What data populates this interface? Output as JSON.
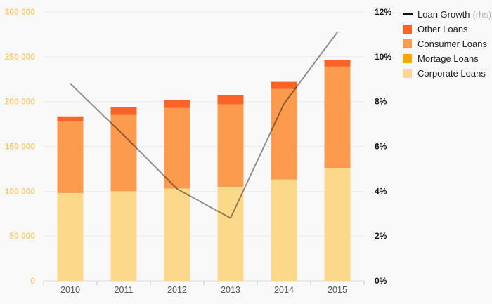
{
  "chart_data": {
    "type": "bar",
    "subtype": "stacked-bars-with-line-overlay",
    "title": "",
    "categories": [
      "2010",
      "2011",
      "2012",
      "2013",
      "2014",
      "2015"
    ],
    "series": [
      {
        "name": "Corporate Loans",
        "type": "bar",
        "color": "#fbd88a",
        "values": [
          98000,
          100000,
          103000,
          105000,
          113000,
          126000
        ]
      },
      {
        "name": "Mortage Loans",
        "type": "bar",
        "color": "#f6a800",
        "values": [
          0,
          0,
          0,
          0,
          0,
          0
        ]
      },
      {
        "name": "Consumer Loans",
        "type": "bar",
        "color": "#fc9a4e",
        "values": [
          80000,
          85000,
          90000,
          92000,
          101000,
          113000
        ]
      },
      {
        "name": "Other Loans",
        "type": "bar",
        "color": "#fb6426",
        "values": [
          5500,
          8500,
          8500,
          10000,
          8000,
          7500
        ]
      },
      {
        "name": "Loan Growth",
        "type": "line",
        "axis": "right",
        "color": "rgba(0,0,0,0.42)",
        "values": [
          8.8,
          6.5,
          4.1,
          2.8,
          7.9,
          11.1
        ]
      }
    ],
    "left_axis": {
      "min": 0,
      "max": 300000,
      "tick_values": [
        0,
        50000,
        100000,
        150000,
        200000,
        250000,
        300000
      ],
      "tick_labels": [
        "0",
        "50 000",
        "100 000",
        "150 000",
        "200 000",
        "250 000",
        "300 000"
      ],
      "label_color": "#f8cc7a"
    },
    "right_axis": {
      "min": 0,
      "max": 12,
      "tick_values": [
        0,
        2,
        4,
        6,
        8,
        10,
        12
      ],
      "tick_labels": [
        "0%",
        "2%",
        "4%",
        "6%",
        "8%",
        "10%",
        "12%"
      ],
      "label_color": "#141414"
    },
    "x_axis": {
      "label_color": "#555555",
      "axis_line_color": "#d7dade",
      "tick_color": "#c7ccd4"
    },
    "grid": {
      "show": true,
      "color": "#ececec"
    },
    "legend": {
      "position": "top-right",
      "items": [
        {
          "label": "Loan Growth",
          "note": "(rhs)",
          "marker": "line",
          "color": "#111111"
        },
        {
          "label": "Other Loans",
          "marker": "swatch",
          "color": "#fb6426"
        },
        {
          "label": "Consumer Loans",
          "marker": "swatch",
          "color": "#fc9a4e"
        },
        {
          "label": "Mortage Loans",
          "marker": "swatch",
          "color": "#f6a800"
        },
        {
          "label": "Corporate Loans",
          "marker": "swatch",
          "color": "#fbd88a"
        }
      ]
    },
    "colors": {
      "background": "#f9f9f9",
      "line": "rgba(0,0,0,0.42)"
    }
  }
}
